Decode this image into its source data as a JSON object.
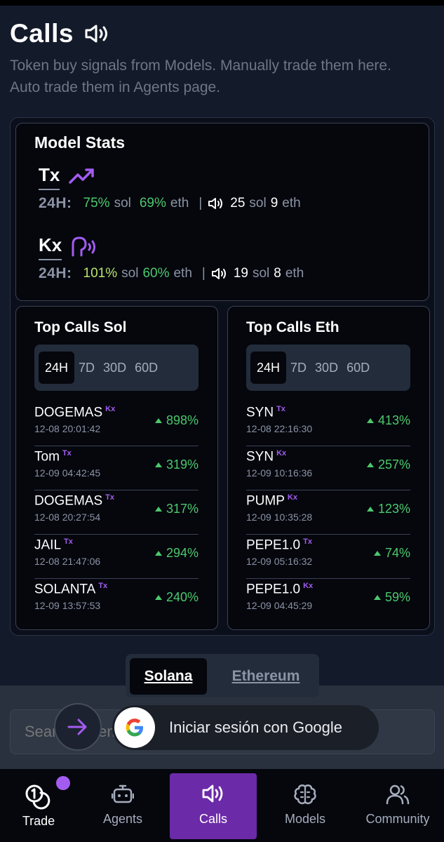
{
  "header": {
    "title": "Calls",
    "subtitle_line1": "Token buy signals from Models. Manually trade them here.",
    "subtitle_line2": "Auto trade them in Agents page."
  },
  "model_stats": {
    "title": "Model Stats",
    "period_label": "24H:",
    "models": [
      {
        "name": "Tx",
        "pct1": "75%",
        "unit1": "sol",
        "pct2": "69%",
        "unit2": "eth",
        "count1": "25",
        "cunit1": "sol",
        "count2": "9",
        "cunit2": "eth"
      },
      {
        "name": "Kx",
        "pct1": "101%",
        "unit1": "sol",
        "pct2": "60%",
        "unit2": "eth",
        "count1": "19",
        "cunit1": "sol",
        "count2": "8",
        "cunit2": "eth"
      }
    ],
    "separator": "|"
  },
  "top_calls_sol": {
    "title": "Top Calls Sol",
    "tabs": [
      "24H",
      "7D",
      "30D",
      "60D"
    ],
    "active_tab": "24H",
    "rows": [
      {
        "token": "DOGEMAS",
        "tag": "Kx",
        "time": "12-08 20:01:42",
        "pct": "898%"
      },
      {
        "token": "Tom",
        "tag": "Tx",
        "time": "12-09 04:42:45",
        "pct": "319%"
      },
      {
        "token": "DOGEMAS",
        "tag": "Tx",
        "time": "12-08 20:27:54",
        "pct": "317%"
      },
      {
        "token": "JAIL",
        "tag": "Tx",
        "time": "12-08 21:47:06",
        "pct": "294%"
      },
      {
        "token": "SOLANTA",
        "tag": "Tx",
        "time": "12-09 13:57:53",
        "pct": "240%"
      }
    ]
  },
  "top_calls_eth": {
    "title": "Top Calls Eth",
    "tabs": [
      "24H",
      "7D",
      "30D",
      "60D"
    ],
    "active_tab": "24H",
    "rows": [
      {
        "token": "SYN",
        "tag": "Tx",
        "time": "12-08 22:16:30",
        "pct": "413%"
      },
      {
        "token": "SYN",
        "tag": "Kx",
        "time": "12-09 10:16:36",
        "pct": "257%"
      },
      {
        "token": "PUMP",
        "tag": "Kx",
        "time": "12-09 10:35:28",
        "pct": "123%"
      },
      {
        "token": "PEPE1.0",
        "tag": "Tx",
        "time": "12-09 05:16:32",
        "pct": "74%"
      },
      {
        "token": "PEPE1.0",
        "tag": "Kx",
        "time": "12-09 04:45:29",
        "pct": "59%"
      }
    ]
  },
  "chain_toggle": {
    "solana": "Solana",
    "ethereum": "Ethereum",
    "active": "Solana"
  },
  "search": {
    "placeholder": "Search token"
  },
  "google_prompt": {
    "label": "Iniciar sesión con Google"
  },
  "nav": {
    "items": [
      {
        "label": "Trade"
      },
      {
        "label": "Agents"
      },
      {
        "label": "Calls"
      },
      {
        "label": "Models"
      },
      {
        "label": "Community"
      }
    ],
    "active": "Calls"
  },
  "colors": {
    "accent": "#6b2aa8",
    "positive": "#4cc96d",
    "tag": "#a35cf0"
  }
}
